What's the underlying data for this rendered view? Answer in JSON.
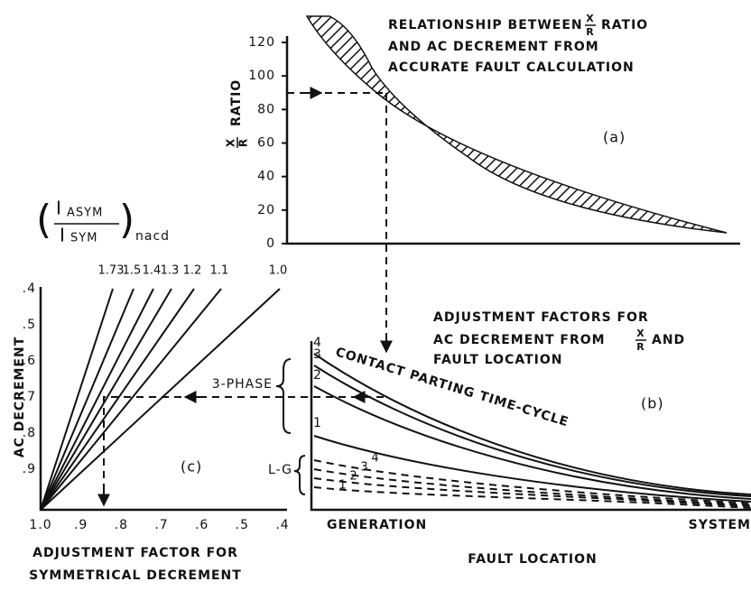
{
  "panel_a": {
    "title": [
      "RELATIONSHIP BETWEEN",
      "RATIO",
      "AND AC DECREMENT FROM",
      "ACCURATE FAULT CALCULATION"
    ],
    "fraction": [
      "X",
      "R"
    ],
    "axis_label": "RATIO",
    "ticks": [
      "120",
      "100",
      "80",
      "60",
      "40",
      "20",
      "0"
    ],
    "tag": "(a)"
  },
  "panel_b": {
    "title": [
      "ADJUSTMENT FACTORS FOR",
      "AC DECREMENT FROM",
      "AND",
      "FAULT LOCATION"
    ],
    "curve_label": "CONTACT PARTING TIME-CYCLE",
    "three_phase": "3-PHASE",
    "lg": "L-G",
    "solid_numbers": [
      "4",
      "3",
      "2",
      "1"
    ],
    "dashed_numbers": [
      "4",
      "3",
      "2",
      "1"
    ],
    "tag": "(b)",
    "x_left": "GENERATION",
    "x_right": "SYSTEM",
    "x_title": "FAULT LOCATION"
  },
  "panel_c": {
    "formula": {
      "top": "I",
      "top_sub": "ASYM",
      "bottom": "I",
      "bottom_sub": "SYM",
      "suffix": "nacd"
    },
    "line_labels": [
      "1.73",
      "1.5",
      "1.4",
      "1.3",
      "1.2",
      "1.1",
      "1.0"
    ],
    "y_ticks": [
      ".4",
      ".5",
      ".6",
      ".7",
      ".8",
      ".9"
    ],
    "y_title": "AC DECREMENT",
    "x_ticks": [
      "1.0",
      ".9",
      ".8",
      ".7",
      ".6",
      ".5",
      ".4"
    ],
    "x_title": [
      "ADJUSTMENT FACTOR FOR",
      "SYMMETRICAL DECREMENT"
    ],
    "tag": "(c)"
  }
}
